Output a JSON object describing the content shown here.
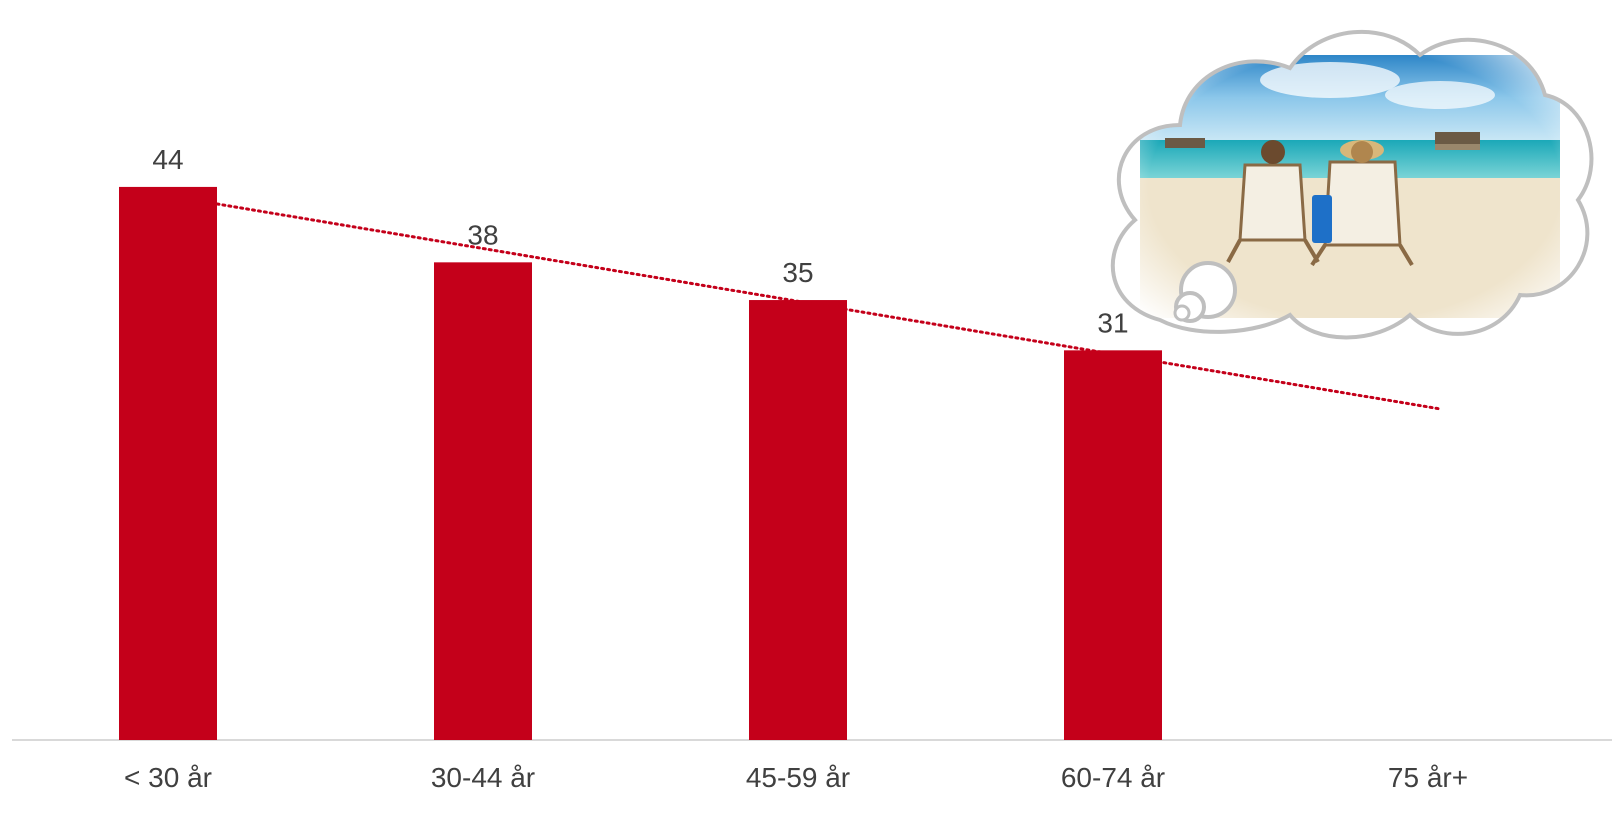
{
  "chart_data": {
    "type": "bar",
    "categories": [
      "< 30 år",
      "30-44 år",
      "45-59 år",
      "60-74 år",
      "75 år+"
    ],
    "values": [
      44,
      38,
      35,
      31,
      null
    ],
    "data_labels": [
      "44",
      "38",
      "35",
      "31",
      ""
    ],
    "ylim": [
      0,
      44
    ],
    "trendline": {
      "type": "linear",
      "style": "dotted",
      "extends_to_category": "75 år+"
    },
    "grid": false,
    "legend": "none",
    "colors": {
      "bar": "#c4001a",
      "trendline": "#c4001a",
      "axis": "#d9d9d9",
      "text": "#404040",
      "cloud_outline": "#bfbfbf"
    },
    "decoration": {
      "image": "thought-bubble-beach-chairs"
    }
  }
}
